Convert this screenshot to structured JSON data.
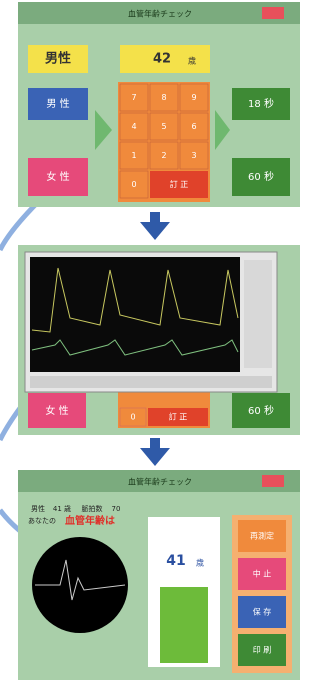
{
  "screen1": {
    "title": "血管年齢チェック",
    "sex_display": "男性",
    "age": "42",
    "age_unit": "歳",
    "male_button": "男 性",
    "female_button": "女 性",
    "keys": [
      "7",
      "8",
      "9",
      "4",
      "5",
      "6",
      "1",
      "2",
      "3",
      "0"
    ],
    "clear_button": "訂 正",
    "time_short": "18 秒",
    "time_long": "60 秒"
  },
  "screen2": {
    "female_button": "女 性",
    "zero_key": "0",
    "clear_button": "訂 正",
    "time_long": "60 秒"
  },
  "screen3": {
    "title": "血管年齢チェック",
    "info_sex": "男性",
    "info_age": "41 歳",
    "info_pulse_label": "脈拍数",
    "info_pulse": "70",
    "result_prefix": "あなたの",
    "result_label": "血管年齢は",
    "result_age": "41",
    "result_unit": "歳",
    "buttons": [
      "再測定",
      "中 止",
      "保 存",
      "印 刷"
    ]
  }
}
